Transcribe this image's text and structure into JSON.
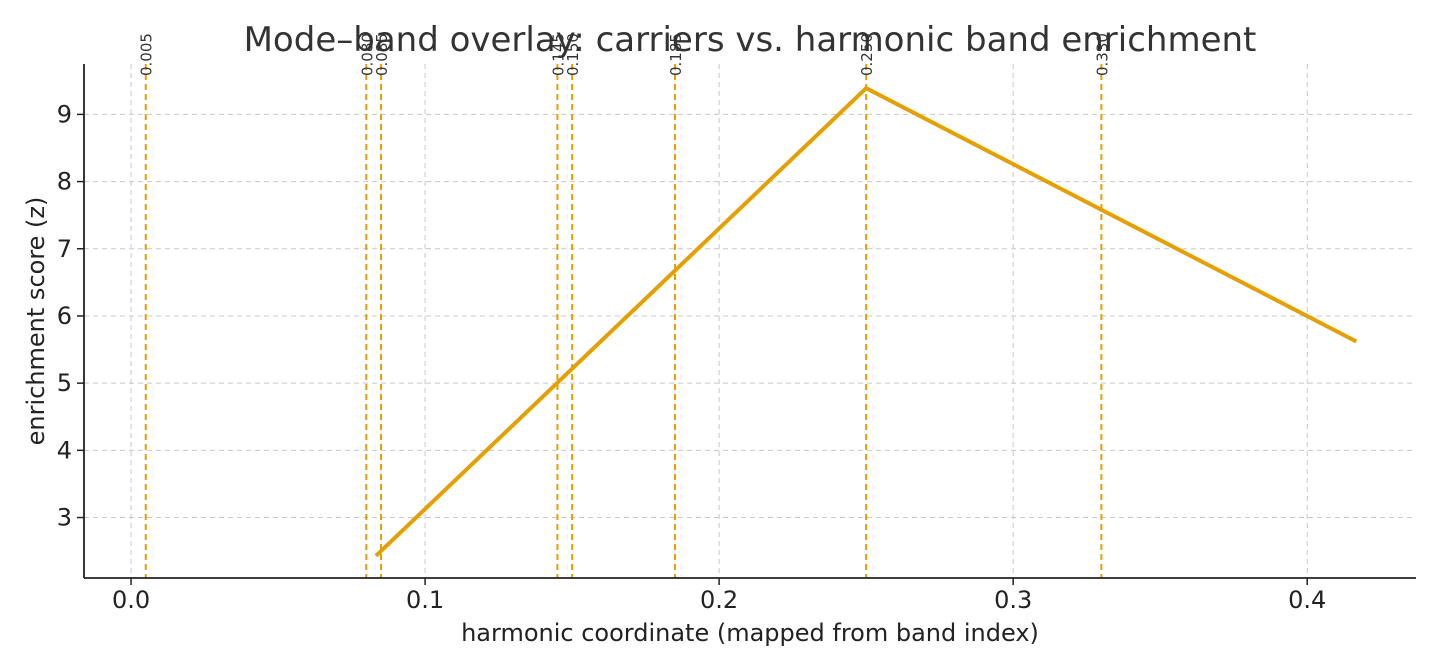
{
  "chart_data": {
    "type": "line",
    "title": "Mode–band overlay: carriers vs. harmonic band enrichment",
    "xlabel": "harmonic coordinate (mapped from band index)",
    "ylabel": "enrichment score (z)",
    "xlim": [
      -0.016,
      0.437
    ],
    "ylim": [
      2.1,
      9.75
    ],
    "xticks": [
      0.0,
      0.1,
      0.2,
      0.3,
      0.4
    ],
    "xtick_labels": [
      "0.0",
      "0.1",
      "0.2",
      "0.3",
      "0.4"
    ],
    "yticks": [
      3,
      4,
      5,
      6,
      7,
      8,
      9
    ],
    "ytick_labels": [
      "3",
      "4",
      "5",
      "6",
      "7",
      "8",
      "9"
    ],
    "grid": true,
    "series": [
      {
        "color": "#E69F00",
        "x": [
          0.0833,
          0.25,
          0.4167
        ],
        "y": [
          2.43,
          9.39,
          5.62
        ]
      }
    ],
    "vlines": [
      {
        "x": 0.005,
        "label": "0.005"
      },
      {
        "x": 0.08,
        "label": "0.080"
      },
      {
        "x": 0.085,
        "label": "0.085"
      },
      {
        "x": 0.145,
        "label": "0.145"
      },
      {
        "x": 0.15,
        "label": "0.150"
      },
      {
        "x": 0.185,
        "label": "0.185"
      },
      {
        "x": 0.25,
        "label": "0.250"
      },
      {
        "x": 0.33,
        "label": "0.330"
      }
    ],
    "vline_color": "#E69F00"
  }
}
